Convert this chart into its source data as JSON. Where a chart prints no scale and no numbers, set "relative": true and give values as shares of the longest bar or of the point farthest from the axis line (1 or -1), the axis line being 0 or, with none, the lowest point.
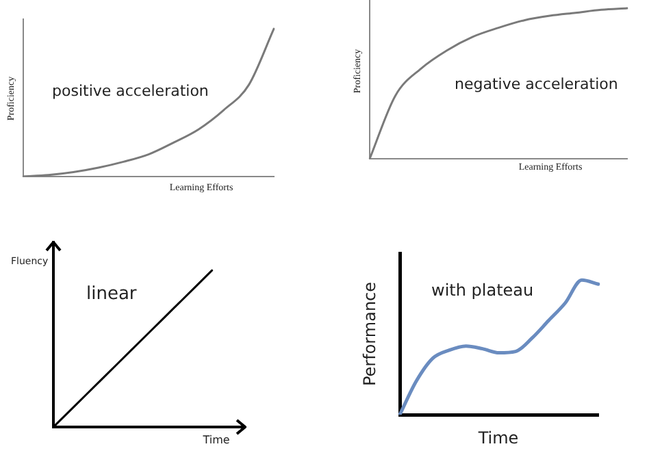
{
  "chart_data": [
    {
      "type": "line",
      "relative": true,
      "tick_labels": false,
      "grid": false,
      "legend": false,
      "marker": "none",
      "xlabel": "Learning Efforts",
      "ylabel": "Proficiency",
      "annotations": [
        "positive acceleration"
      ],
      "categories": [
        null,
        null,
        null,
        null,
        null,
        null,
        null,
        null,
        null,
        null,
        null
      ],
      "series": [
        {
          "color": "#7a7a7a",
          "values": [
            0,
            0.01,
            0.03,
            0.06,
            0.1,
            0.15,
            0.23,
            0.32,
            0.45,
            0.62,
            1
          ]
        }
      ]
    },
    {
      "type": "line",
      "relative": true,
      "tick_labels": false,
      "grid": false,
      "legend": false,
      "marker": "none",
      "xlabel": "Learning Efforts",
      "ylabel": "Proficiency",
      "annotations": [
        "negative acceleration"
      ],
      "categories": [
        null,
        null,
        null,
        null,
        null,
        null,
        null,
        null,
        null,
        null,
        null
      ],
      "series": [
        {
          "color": "#7a7a7a",
          "values": [
            0,
            0.42,
            0.6,
            0.72,
            0.81,
            0.87,
            0.92,
            0.95,
            0.97,
            0.99,
            1
          ]
        }
      ]
    },
    {
      "type": "line",
      "relative": true,
      "tick_labels": false,
      "grid": false,
      "legend": false,
      "marker": "none",
      "xlabel": "Time",
      "ylabel": "Fluency",
      "annotations": [
        "linear"
      ],
      "categories": [
        null,
        null,
        null,
        null,
        null,
        null,
        null,
        null,
        null,
        null,
        null,
        null,
        null
      ],
      "series": [
        {
          "color": "#000000",
          "values": [
            0,
            0.1,
            0.2,
            0.3,
            0.4,
            0.5,
            0.6,
            0.7,
            0.8,
            0.9,
            1,
            null,
            null
          ]
        }
      ]
    },
    {
      "type": "line",
      "relative": true,
      "tick_labels": false,
      "grid": false,
      "legend": false,
      "marker": "none",
      "xlabel": "Time",
      "ylabel": "Performance",
      "annotations": [
        "with plateau"
      ],
      "categories": [
        null,
        null,
        null,
        null,
        null,
        null,
        null,
        null,
        null,
        null,
        null,
        null,
        null
      ],
      "series": [
        {
          "color": "#6a8cc0",
          "values": [
            0,
            0.25,
            0.42,
            0.48,
            0.51,
            0.49,
            0.46,
            0.47,
            0.57,
            0.7,
            0.83,
            1,
            0.97
          ]
        }
      ]
    }
  ]
}
